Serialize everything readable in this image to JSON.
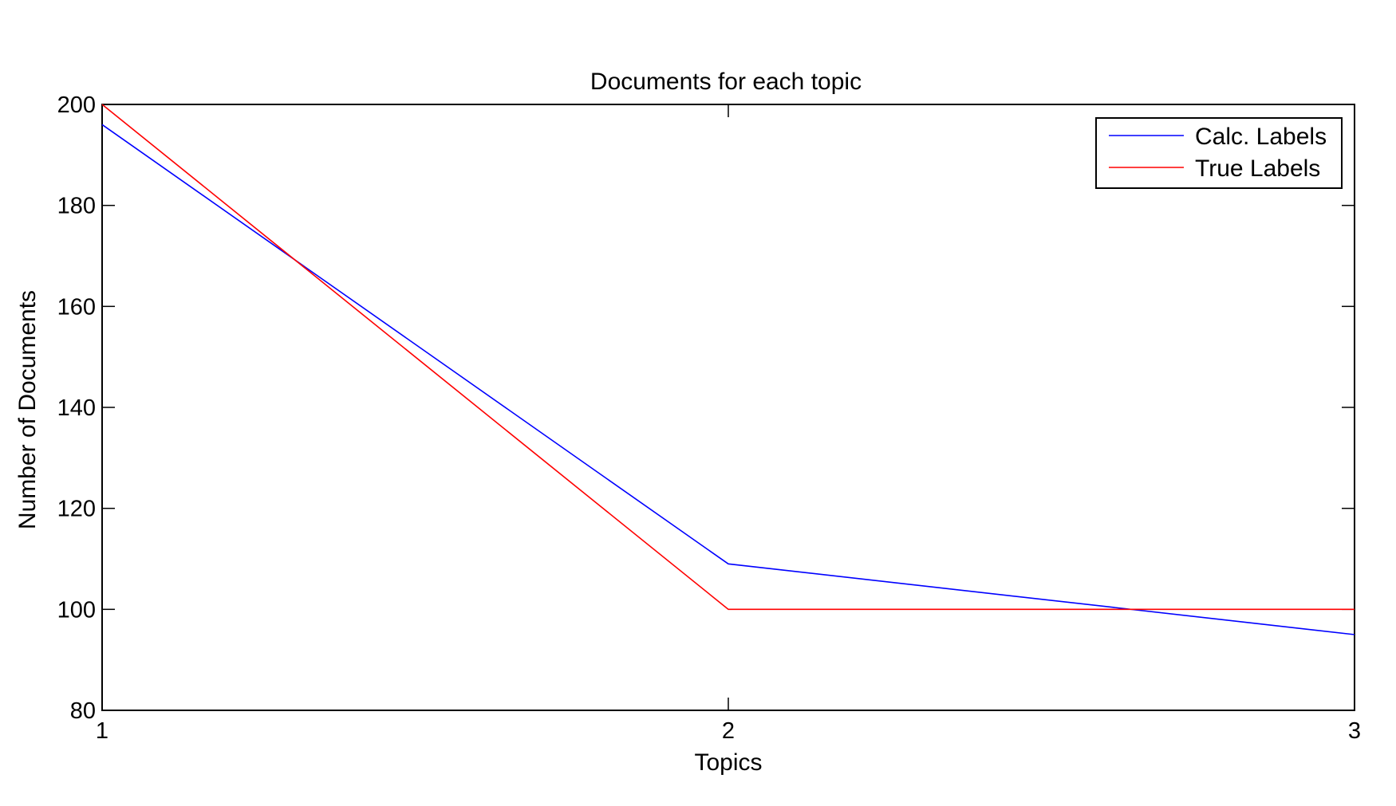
{
  "chart_data": {
    "type": "line",
    "title": "Documents for each topic",
    "xlabel": "Topics",
    "ylabel": "Number of Documents",
    "x": [
      1,
      2,
      3
    ],
    "xlim": [
      1,
      3
    ],
    "ylim": [
      80,
      200
    ],
    "xticks": [
      1,
      2,
      3
    ],
    "yticks": [
      80,
      100,
      120,
      140,
      160,
      180,
      200
    ],
    "grid": false,
    "legend_position": "top-right",
    "series": [
      {
        "name": "Calc. Labels",
        "values": [
          196,
          109,
          95
        ],
        "color": "#0000ff"
      },
      {
        "name": "True Labels",
        "values": [
          200,
          100,
          100
        ],
        "color": "#ff0000"
      }
    ]
  }
}
